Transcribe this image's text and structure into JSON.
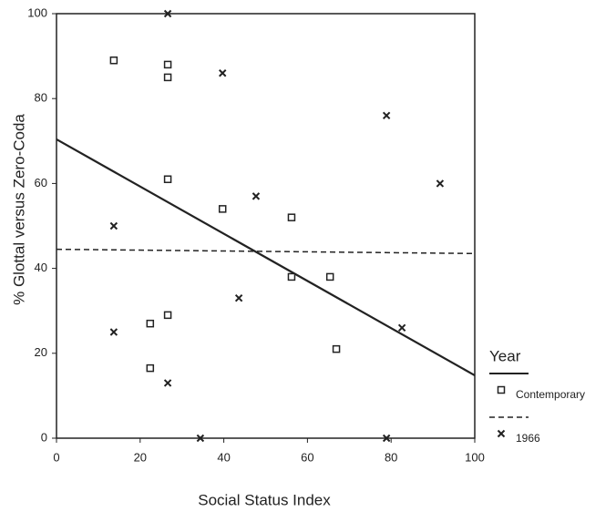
{
  "chart_data": {
    "type": "scatter",
    "xlabel": "Social Status Index",
    "ylabel": "% Glottal versus Zero-Coda",
    "xlim": [
      0,
      100
    ],
    "xticks": [
      0,
      20,
      40,
      60,
      80,
      100
    ],
    "ylim": [
      0,
      100
    ],
    "yticks": [
      0,
      20,
      40,
      60,
      80,
      100
    ],
    "grid": false,
    "legend_title": "Year",
    "legend": "right",
    "series": [
      {
        "name": "Contemporary",
        "color": "#222222",
        "marker": "square",
        "x": [
          13.7,
          26.6,
          26.6,
          26.6,
          39.7,
          56.2,
          56.2,
          65.4,
          66.9,
          22.4,
          26.6,
          22.4
        ],
        "values": [
          89,
          88,
          85,
          61,
          54,
          52,
          38,
          38,
          21,
          27,
          29,
          16.5
        ],
        "fit": {
          "x": [
            0,
            100
          ],
          "y": [
            70.4,
            14.8
          ],
          "dash": false
        }
      },
      {
        "name": "1966",
        "color": "#222222",
        "marker": "x",
        "x": [
          26.6,
          39.7,
          78.9,
          91.7,
          13.7,
          47.7,
          43.6,
          82.6,
          13.7,
          26.6,
          34.4,
          78.9
        ],
        "values": [
          100,
          86,
          76,
          60,
          50,
          57,
          33,
          26,
          25,
          13,
          0,
          0
        ],
        "fit": {
          "x": [
            0,
            100
          ],
          "y": [
            44.5,
            43.5
          ],
          "dash": true
        }
      }
    ]
  }
}
